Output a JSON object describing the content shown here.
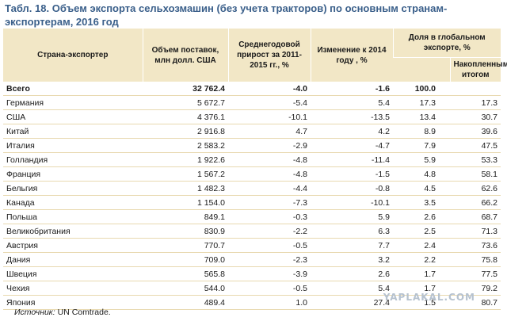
{
  "title": "Табл. 18. Объем экспорта сельхозмашин (без учета тракторов) по основным странам-экспортерам, 2016 год",
  "headers": {
    "country": "Страна-экспортер",
    "volume": "Объем поставок, млн долл. США",
    "growth": "Среднегодовой прирост за 2011-2015 гг., %",
    "change": "Изменение к 2014 году , %",
    "share_group": "Доля в глобальном экспорте, %",
    "cumulative": "Накопленным итогом"
  },
  "rows": [
    {
      "country": "Всего",
      "volume": "32 762.4",
      "growth": "-4.0",
      "change": "-1.6",
      "share": "100.0",
      "cumulative": ""
    },
    {
      "country": "Германия",
      "volume": "5 672.7",
      "growth": "-5.4",
      "change": "5.4",
      "share": "17.3",
      "cumulative": "17.3"
    },
    {
      "country": "США",
      "volume": "4 376.1",
      "growth": "-10.1",
      "change": "-13.5",
      "share": "13.4",
      "cumulative": "30.7"
    },
    {
      "country": "Китай",
      "volume": "2 916.8",
      "growth": "4.7",
      "change": "4.2",
      "share": "8.9",
      "cumulative": "39.6"
    },
    {
      "country": "Италия",
      "volume": "2 583.2",
      "growth": "-2.9",
      "change": "-4.7",
      "share": "7.9",
      "cumulative": "47.5"
    },
    {
      "country": "Голландия",
      "volume": "1 922.6",
      "growth": "-4.8",
      "change": "-11.4",
      "share": "5.9",
      "cumulative": "53.3"
    },
    {
      "country": "Франция",
      "volume": "1 567.2",
      "growth": "-4.8",
      "change": "-1.5",
      "share": "4.8",
      "cumulative": "58.1"
    },
    {
      "country": "Бельгия",
      "volume": "1 482.3",
      "growth": "-4.4",
      "change": "-0.8",
      "share": "4.5",
      "cumulative": "62.6"
    },
    {
      "country": "Канада",
      "volume": "1 154.0",
      "growth": "-7.3",
      "change": "-10.1",
      "share": "3.5",
      "cumulative": "66.2"
    },
    {
      "country": "Польша",
      "volume": "849.1",
      "growth": "-0.3",
      "change": "5.9",
      "share": "2.6",
      "cumulative": "68.7"
    },
    {
      "country": "Великобритания",
      "volume": "830.9",
      "growth": "-2.2",
      "change": "6.3",
      "share": "2.5",
      "cumulative": "71.3"
    },
    {
      "country": "Австрия",
      "volume": "770.7",
      "growth": "-0.5",
      "change": "7.7",
      "share": "2.4",
      "cumulative": "73.6"
    },
    {
      "country": "Дания",
      "volume": "709.0",
      "growth": "-2.3",
      "change": "3.2",
      "share": "2.2",
      "cumulative": "75.8"
    },
    {
      "country": "Швеция",
      "volume": "565.8",
      "growth": "-3.9",
      "change": "2.6",
      "share": "1.7",
      "cumulative": "77.5"
    },
    {
      "country": "Чехия",
      "volume": "544.0",
      "growth": "-0.5",
      "change": "5.4",
      "share": "1.7",
      "cumulative": "79.2"
    },
    {
      "country": "Япония",
      "volume": "489.4",
      "growth": "1.0",
      "change": "27.4",
      "share": "1.5",
      "cumulative": "80.7"
    }
  ],
  "source": {
    "label": "Источник:",
    "text": " UN Comtrade."
  },
  "watermark": "YAPLAKAL.COM"
}
